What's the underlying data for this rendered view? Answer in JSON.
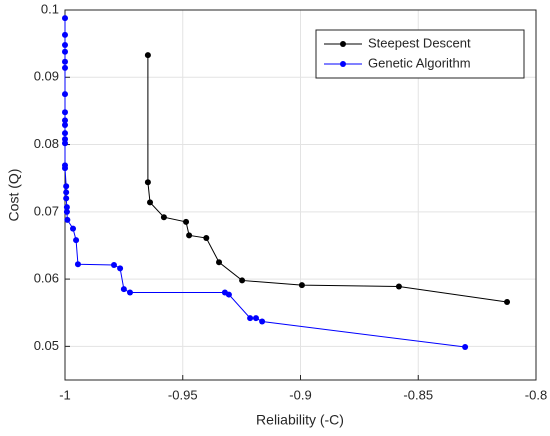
{
  "chart_data": {
    "type": "line",
    "xlabel": "Reliability (-C)",
    "ylabel": "Cost (Q)",
    "xlim": [
      -1,
      -0.8
    ],
    "xticks": [
      -1,
      -0.95,
      -0.9,
      -0.85,
      -0.8
    ],
    "ylim": [
      0.045,
      0.1
    ],
    "yticks": [
      0.05,
      0.06,
      0.07,
      0.08,
      0.09,
      0.1
    ],
    "grid": true,
    "legend": "top-right",
    "series": [
      {
        "name": "Steepest Descent",
        "color": "#000000",
        "x": [
          -0.9648,
          -0.9648,
          -0.9639,
          -0.958,
          -0.9486,
          -0.9473,
          -0.94,
          -0.9346,
          -0.9248,
          -0.8994,
          -0.8582,
          -0.8123
        ],
        "values": [
          0.0933,
          0.0744,
          0.0714,
          0.0692,
          0.0685,
          0.0665,
          0.0661,
          0.0625,
          0.0598,
          0.0591,
          0.0589,
          0.0566
        ]
      },
      {
        "name": "Genetic Algorithm",
        "color": "#0000ff",
        "x": [
          -1,
          -1,
          -1,
          -1,
          -1,
          -1,
          -1,
          -1,
          -1,
          -1,
          -1,
          -1,
          -1,
          -1,
          -1,
          -0.9995,
          -0.9995,
          -0.9995,
          -0.9992,
          -0.9992,
          -0.999,
          -0.9966,
          -0.9953,
          -0.9945,
          -0.9792,
          -0.9766,
          -0.975,
          -0.9724,
          -0.9321,
          -0.9304,
          -0.9214,
          -0.9189,
          -0.9163,
          -0.8301
        ],
        "values": [
          0.0988,
          0.0963,
          0.0948,
          0.0938,
          0.0923,
          0.0914,
          0.0875,
          0.0848,
          0.0836,
          0.0829,
          0.0817,
          0.0808,
          0.0802,
          0.0769,
          0.0765,
          0.0738,
          0.0729,
          0.072,
          0.0707,
          0.07,
          0.0688,
          0.0675,
          0.0658,
          0.0622,
          0.0621,
          0.0616,
          0.0585,
          0.058,
          0.058,
          0.0577,
          0.0542,
          0.0542,
          0.0537,
          0.0499
        ]
      }
    ]
  }
}
